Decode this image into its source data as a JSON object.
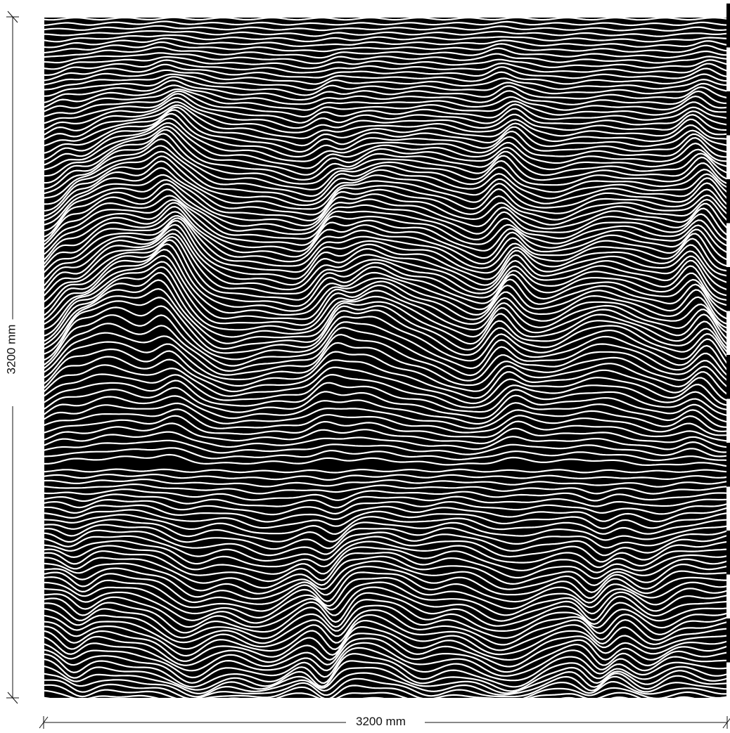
{
  "panel": {
    "background_color": "#000000",
    "line_color": "#ffffff",
    "pattern": "contour-wave-lines"
  },
  "dimensions": {
    "width_label": "3200 mm",
    "height_label": "3200 mm"
  },
  "edge_marks_count": 8
}
